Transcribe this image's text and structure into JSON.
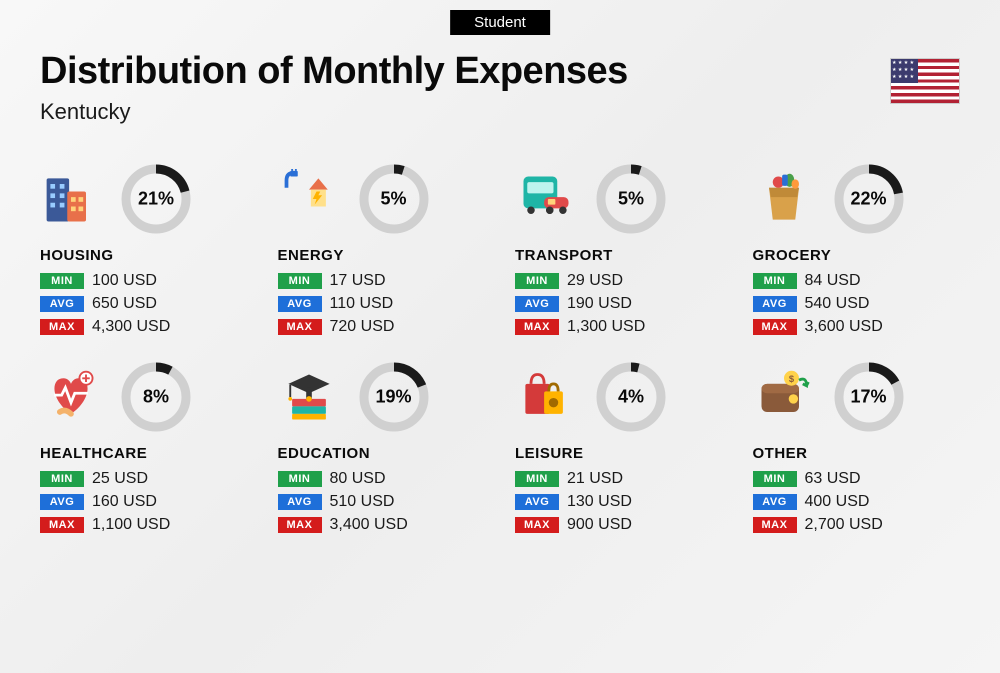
{
  "header_badge": "Student",
  "title": "Distribution of Monthly Expenses",
  "subtitle": "Kentucky",
  "country_flag": "us-flag",
  "colors": {
    "min_badge": "#1fa04a",
    "avg_badge": "#1e6fd9",
    "max_badge": "#d41c1c",
    "ring_fg": "#1a1a1a",
    "ring_bg": "#d0d0d0",
    "text": "#0a0a0a",
    "background": "#f3f3f3"
  },
  "labels": {
    "min": "MIN",
    "avg": "AVG",
    "max": "MAX",
    "currency": "USD"
  },
  "ring": {
    "radius": 30,
    "stroke_width": 9,
    "circumference": 188.5
  },
  "categories": [
    {
      "name": "HOUSING",
      "icon": "housing-icon",
      "percent": 21,
      "min": "100",
      "avg": "650",
      "max": "4,300"
    },
    {
      "name": "ENERGY",
      "icon": "energy-icon",
      "percent": 5,
      "min": "17",
      "avg": "110",
      "max": "720"
    },
    {
      "name": "TRANSPORT",
      "icon": "transport-icon",
      "percent": 5,
      "min": "29",
      "avg": "190",
      "max": "1,300"
    },
    {
      "name": "GROCERY",
      "icon": "grocery-icon",
      "percent": 22,
      "min": "84",
      "avg": "540",
      "max": "3,600"
    },
    {
      "name": "HEALTHCARE",
      "icon": "healthcare-icon",
      "percent": 8,
      "min": "25",
      "avg": "160",
      "max": "1,100"
    },
    {
      "name": "EDUCATION",
      "icon": "education-icon",
      "percent": 19,
      "min": "80",
      "avg": "510",
      "max": "3,400"
    },
    {
      "name": "LEISURE",
      "icon": "leisure-icon",
      "percent": 4,
      "min": "21",
      "avg": "130",
      "max": "900"
    },
    {
      "name": "OTHER",
      "icon": "other-icon",
      "percent": 17,
      "min": "63",
      "avg": "400",
      "max": "2,700"
    }
  ]
}
